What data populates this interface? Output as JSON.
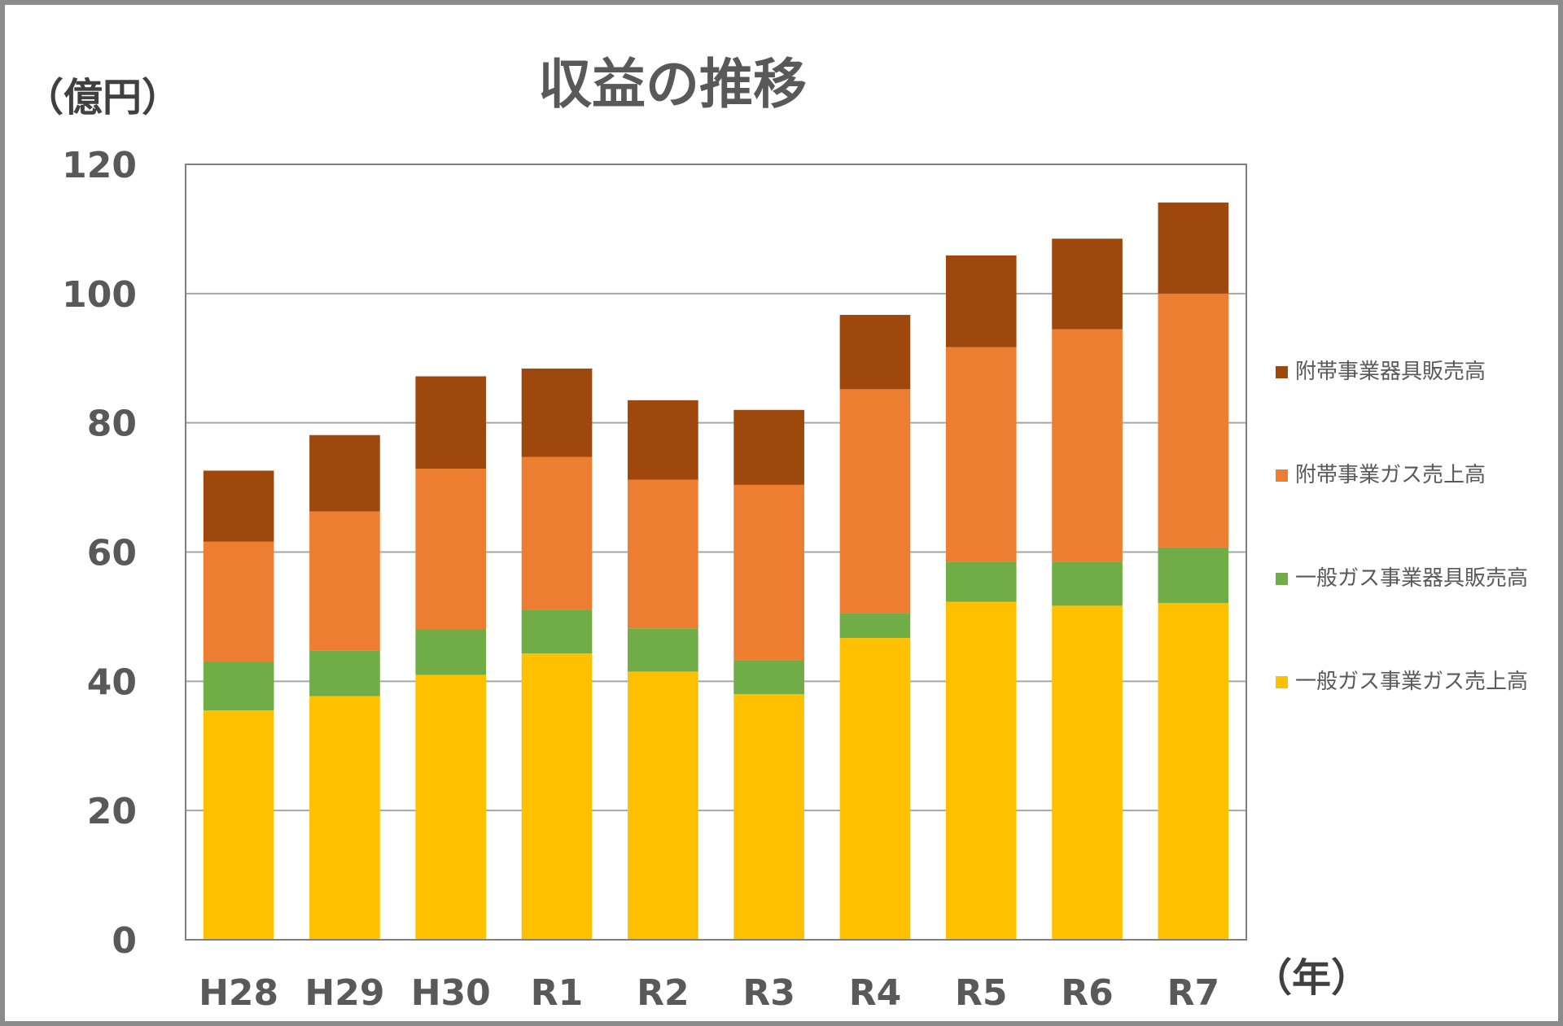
{
  "chart_data": {
    "type": "bar",
    "stacked": true,
    "title": "収益の推移",
    "ylabel": "（億円）",
    "xlabel": "（年）",
    "categories": [
      "H28",
      "H29",
      "H30",
      "R1",
      "R2",
      "R3",
      "R4",
      "R5",
      "R6",
      "R7"
    ],
    "ylim": [
      0,
      120
    ],
    "yticks": [
      0,
      20,
      40,
      60,
      80,
      100,
      120
    ],
    "grid": true,
    "legend_position": "right",
    "series": [
      {
        "name": "一般ガス事業ガス売上高",
        "color": "#FFC000",
        "values": [
          35.5,
          37.7,
          41.0,
          44.3,
          41.5,
          38.0,
          46.7,
          52.3,
          51.7,
          52.1
        ]
      },
      {
        "name": "一般ガス事業器具販売高",
        "color": "#70AD47",
        "values": [
          7.5,
          7.1,
          7.1,
          6.7,
          6.7,
          5.3,
          3.8,
          6.2,
          6.8,
          8.6
        ]
      },
      {
        "name": "附帯事業ガス売上高",
        "color": "#ED7D31",
        "values": [
          18.6,
          21.5,
          24.8,
          23.7,
          23.0,
          27.1,
          34.7,
          33.2,
          36.0,
          39.3
        ]
      },
      {
        "name": "附帯事業器具販売高",
        "color": "#9E480E",
        "values": [
          11.0,
          11.8,
          14.3,
          13.7,
          12.3,
          11.6,
          11.5,
          14.2,
          14.0,
          14.1
        ]
      }
    ]
  }
}
